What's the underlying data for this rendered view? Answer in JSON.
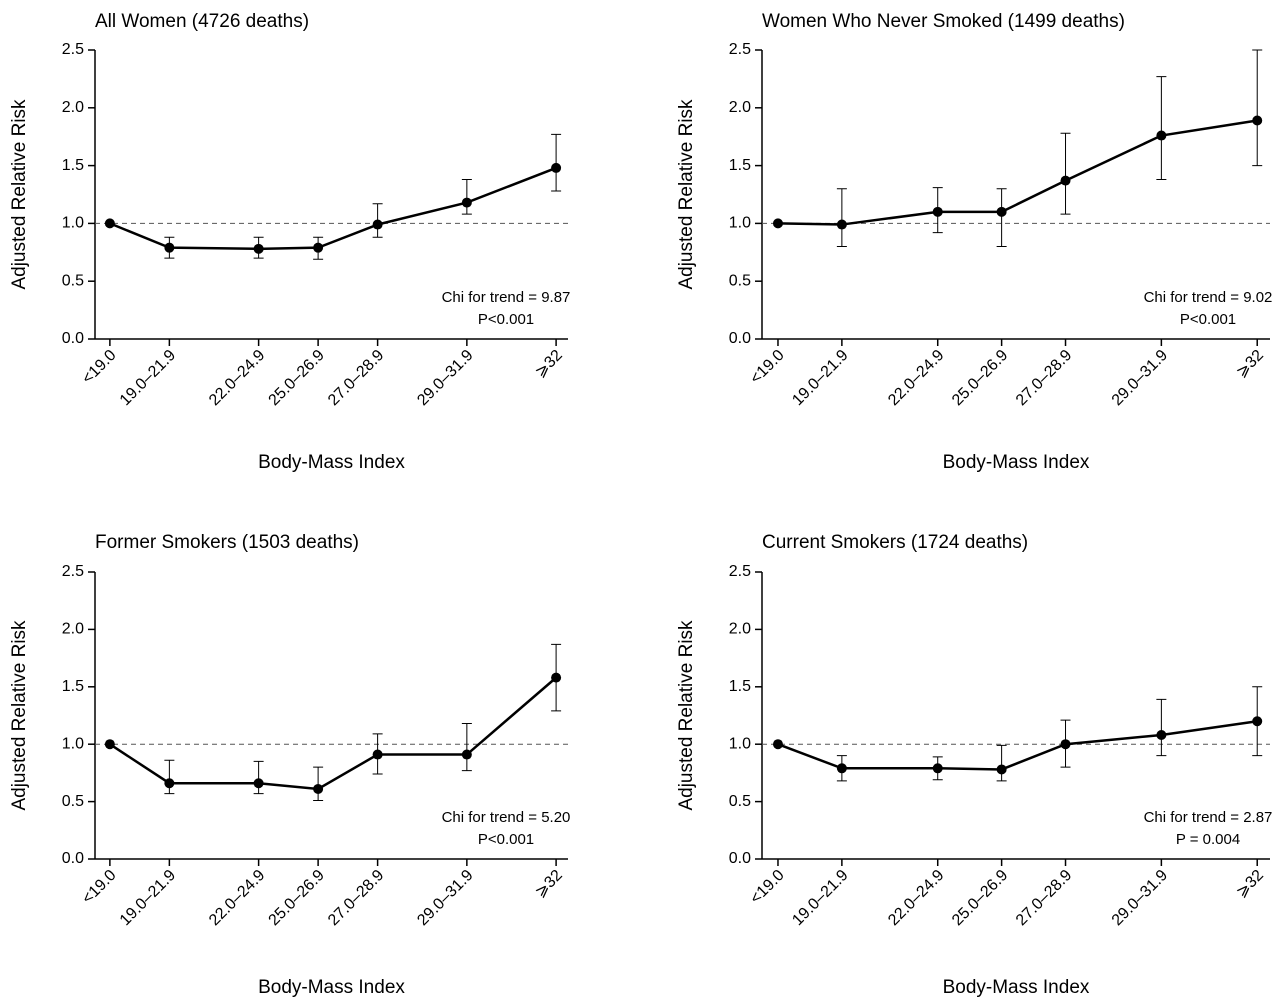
{
  "chart_data": [
    {
      "type": "line",
      "title": "All Women (4726 deaths)",
      "x_label": "Body-Mass Index",
      "y_label": "Adjusted Relative Risk",
      "x": [
        17,
        19,
        22,
        24,
        26,
        29,
        32
      ],
      "xticks": [
        {
          "value": 17,
          "label": "<19.0"
        },
        {
          "value": 19,
          "label": "19.0–21.9"
        },
        {
          "value": 22,
          "label": "22.0–24.9"
        },
        {
          "value": 24,
          "label": "25.0–26.9"
        },
        {
          "value": 26,
          "label": "27.0–28.9"
        },
        {
          "value": 29,
          "label": "29.0–31.9"
        },
        {
          "value": 32,
          "label": "⩾32"
        }
      ],
      "xlim": [
        16.5,
        32.4
      ],
      "ylim": [
        0,
        2.5
      ],
      "yticks": [
        {
          "value": 0,
          "label": "0.0"
        },
        {
          "value": 0.5,
          "label": "0.5"
        },
        {
          "value": 1,
          "label": "1.0"
        },
        {
          "value": 1.5,
          "label": "1.5"
        },
        {
          "value": 2,
          "label": "2.0"
        },
        {
          "value": 2.5,
          "label": "2.5"
        }
      ],
      "reference_line": 1,
      "color": "#000000",
      "values": [
        1.0,
        0.79,
        0.78,
        0.79,
        0.99,
        1.18,
        1.48
      ],
      "ci_low": [
        null,
        0.7,
        0.7,
        0.69,
        0.88,
        1.08,
        1.28
      ],
      "ci_high": [
        null,
        0.88,
        0.88,
        0.88,
        1.17,
        1.38,
        1.77
      ],
      "annotations": [
        "Chi for trend = 9.87",
        "P<0.001"
      ]
    },
    {
      "type": "line",
      "title": "Women Who Never Smoked (1499 deaths)",
      "x_label": "Body-Mass Index",
      "y_label": "Adjusted Relative Risk",
      "x": [
        17,
        19,
        22,
        24,
        26,
        29,
        32
      ],
      "xticks": [
        {
          "value": 17,
          "label": "<19.0"
        },
        {
          "value": 19,
          "label": "19.0–21.9"
        },
        {
          "value": 22,
          "label": "22.0–24.9"
        },
        {
          "value": 24,
          "label": "25.0–26.9"
        },
        {
          "value": 26,
          "label": "27.0–28.9"
        },
        {
          "value": 29,
          "label": "29.0–31.9"
        },
        {
          "value": 32,
          "label": "⩾32"
        }
      ],
      "xlim": [
        16.5,
        32.4
      ],
      "ylim": [
        0,
        2.5
      ],
      "yticks": [
        {
          "value": 0,
          "label": "0.0"
        },
        {
          "value": 0.5,
          "label": "0.5"
        },
        {
          "value": 1,
          "label": "1.0"
        },
        {
          "value": 1.5,
          "label": "1.5"
        },
        {
          "value": 2,
          "label": "2.0"
        },
        {
          "value": 2.5,
          "label": "2.5"
        }
      ],
      "reference_line": 1,
      "color": "#000000",
      "values": [
        1.0,
        0.99,
        1.1,
        1.1,
        1.37,
        1.76,
        1.89
      ],
      "ci_low": [
        null,
        0.8,
        0.92,
        0.8,
        1.08,
        1.38,
        1.5
      ],
      "ci_high": [
        null,
        1.3,
        1.31,
        1.3,
        1.78,
        2.27,
        2.5
      ],
      "annotations": [
        "Chi for trend = 9.02",
        "P<0.001"
      ]
    },
    {
      "type": "line",
      "title": "Former Smokers (1503 deaths)",
      "x_label": "Body-Mass Index",
      "y_label": "Adjusted Relative Risk",
      "x": [
        17,
        19,
        22,
        24,
        26,
        29,
        32
      ],
      "xticks": [
        {
          "value": 17,
          "label": "<19.0"
        },
        {
          "value": 19,
          "label": "19.0–21.9"
        },
        {
          "value": 22,
          "label": "22.0–24.9"
        },
        {
          "value": 24,
          "label": "25.0–26.9"
        },
        {
          "value": 26,
          "label": "27.0–28.9"
        },
        {
          "value": 29,
          "label": "29.0–31.9"
        },
        {
          "value": 32,
          "label": "⩾32"
        }
      ],
      "xlim": [
        16.5,
        32.4
      ],
      "ylim": [
        0,
        2.5
      ],
      "yticks": [
        {
          "value": 0,
          "label": "0.0"
        },
        {
          "value": 0.5,
          "label": "0.5"
        },
        {
          "value": 1,
          "label": "1.0"
        },
        {
          "value": 1.5,
          "label": "1.5"
        },
        {
          "value": 2,
          "label": "2.0"
        },
        {
          "value": 2.5,
          "label": "2.5"
        }
      ],
      "reference_line": 1,
      "color": "#000000",
      "values": [
        1.0,
        0.66,
        0.66,
        0.61,
        0.91,
        0.91,
        1.58
      ],
      "ci_low": [
        null,
        0.57,
        0.57,
        0.51,
        0.74,
        0.77,
        1.29
      ],
      "ci_high": [
        null,
        0.86,
        0.85,
        0.8,
        1.09,
        1.18,
        1.87
      ],
      "annotations": [
        "Chi for trend = 5.20",
        "P<0.001"
      ]
    },
    {
      "type": "line",
      "title": "Current Smokers (1724 deaths)",
      "x_label": "Body-Mass Index",
      "y_label": "Adjusted Relative Risk",
      "x": [
        17,
        19,
        22,
        24,
        26,
        29,
        32
      ],
      "xticks": [
        {
          "value": 17,
          "label": "<19.0"
        },
        {
          "value": 19,
          "label": "19.0–21.9"
        },
        {
          "value": 22,
          "label": "22.0–24.9"
        },
        {
          "value": 24,
          "label": "25.0–26.9"
        },
        {
          "value": 26,
          "label": "27.0–28.9"
        },
        {
          "value": 29,
          "label": "29.0–31.9"
        },
        {
          "value": 32,
          "label": "⩾32"
        }
      ],
      "xlim": [
        16.5,
        32.4
      ],
      "ylim": [
        0,
        2.5
      ],
      "yticks": [
        {
          "value": 0,
          "label": "0.0"
        },
        {
          "value": 0.5,
          "label": "0.5"
        },
        {
          "value": 1,
          "label": "1.0"
        },
        {
          "value": 1.5,
          "label": "1.5"
        },
        {
          "value": 2,
          "label": "2.0"
        },
        {
          "value": 2.5,
          "label": "2.5"
        }
      ],
      "reference_line": 1,
      "color": "#000000",
      "values": [
        1.0,
        0.79,
        0.79,
        0.78,
        1.0,
        1.08,
        1.2
      ],
      "ci_low": [
        null,
        0.68,
        0.69,
        0.68,
        0.8,
        0.9,
        0.9
      ],
      "ci_high": [
        null,
        0.9,
        0.89,
        0.99,
        1.21,
        1.39,
        1.5
      ],
      "annotations": [
        "Chi for trend = 2.87",
        "P = 0.004"
      ]
    }
  ]
}
